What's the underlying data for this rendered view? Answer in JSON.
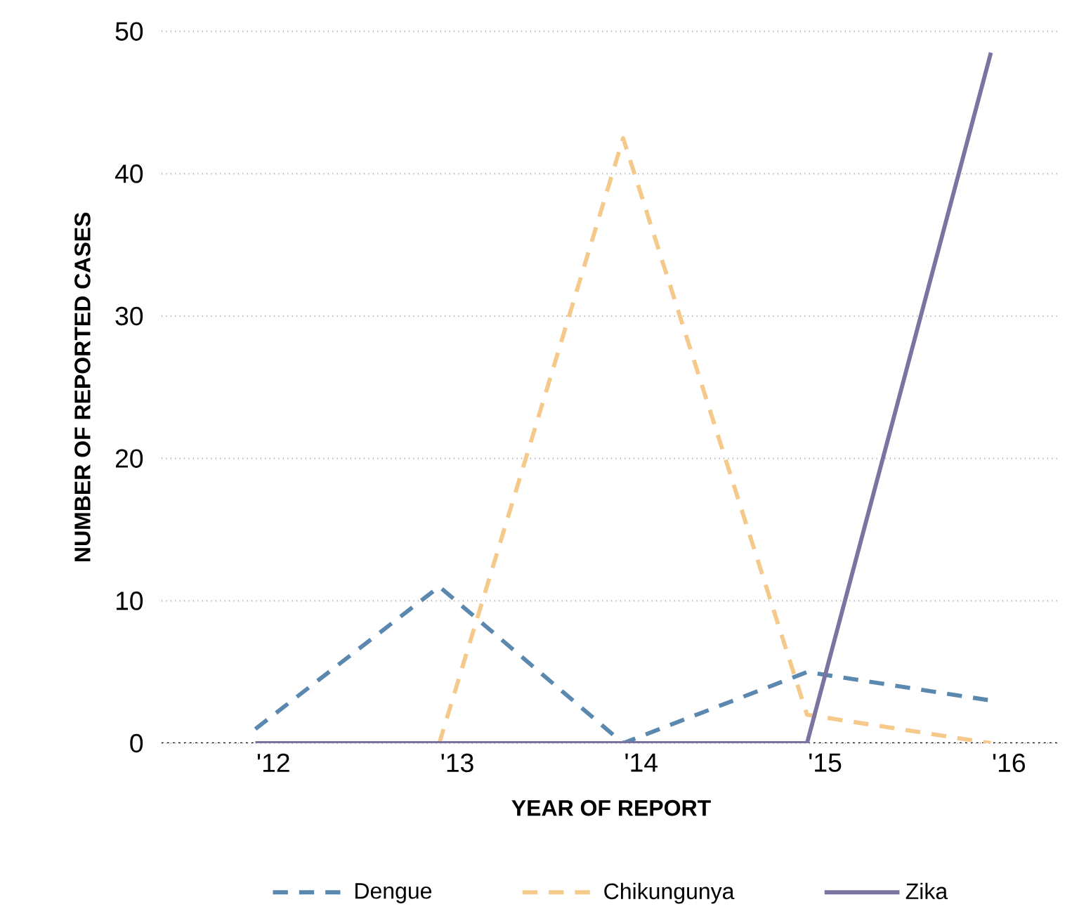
{
  "chart_data": {
    "type": "line",
    "xlabel": "YEAR OF REPORT",
    "ylabel": "NUMBER OF REPORTED CASES",
    "categories": [
      "'12",
      "'13",
      "'14",
      "'15",
      "'16"
    ],
    "series": [
      {
        "name": "Dengue",
        "color": "#5b88ae",
        "line_style": "dashed",
        "values": [
          1,
          11,
          0,
          5,
          3
        ]
      },
      {
        "name": "Chikungunya",
        "color": "#f5c98a",
        "line_style": "dashed",
        "values": [
          0,
          0,
          42.5,
          2,
          0
        ]
      },
      {
        "name": "Zika",
        "color": "#7b74a0",
        "line_style": "solid",
        "values": [
          0,
          0,
          0,
          0,
          48.5
        ]
      }
    ],
    "ylim": [
      0,
      50
    ],
    "yticks": [
      0,
      10,
      20,
      30,
      40,
      50
    ],
    "grid": "y",
    "legend": "bottom"
  }
}
